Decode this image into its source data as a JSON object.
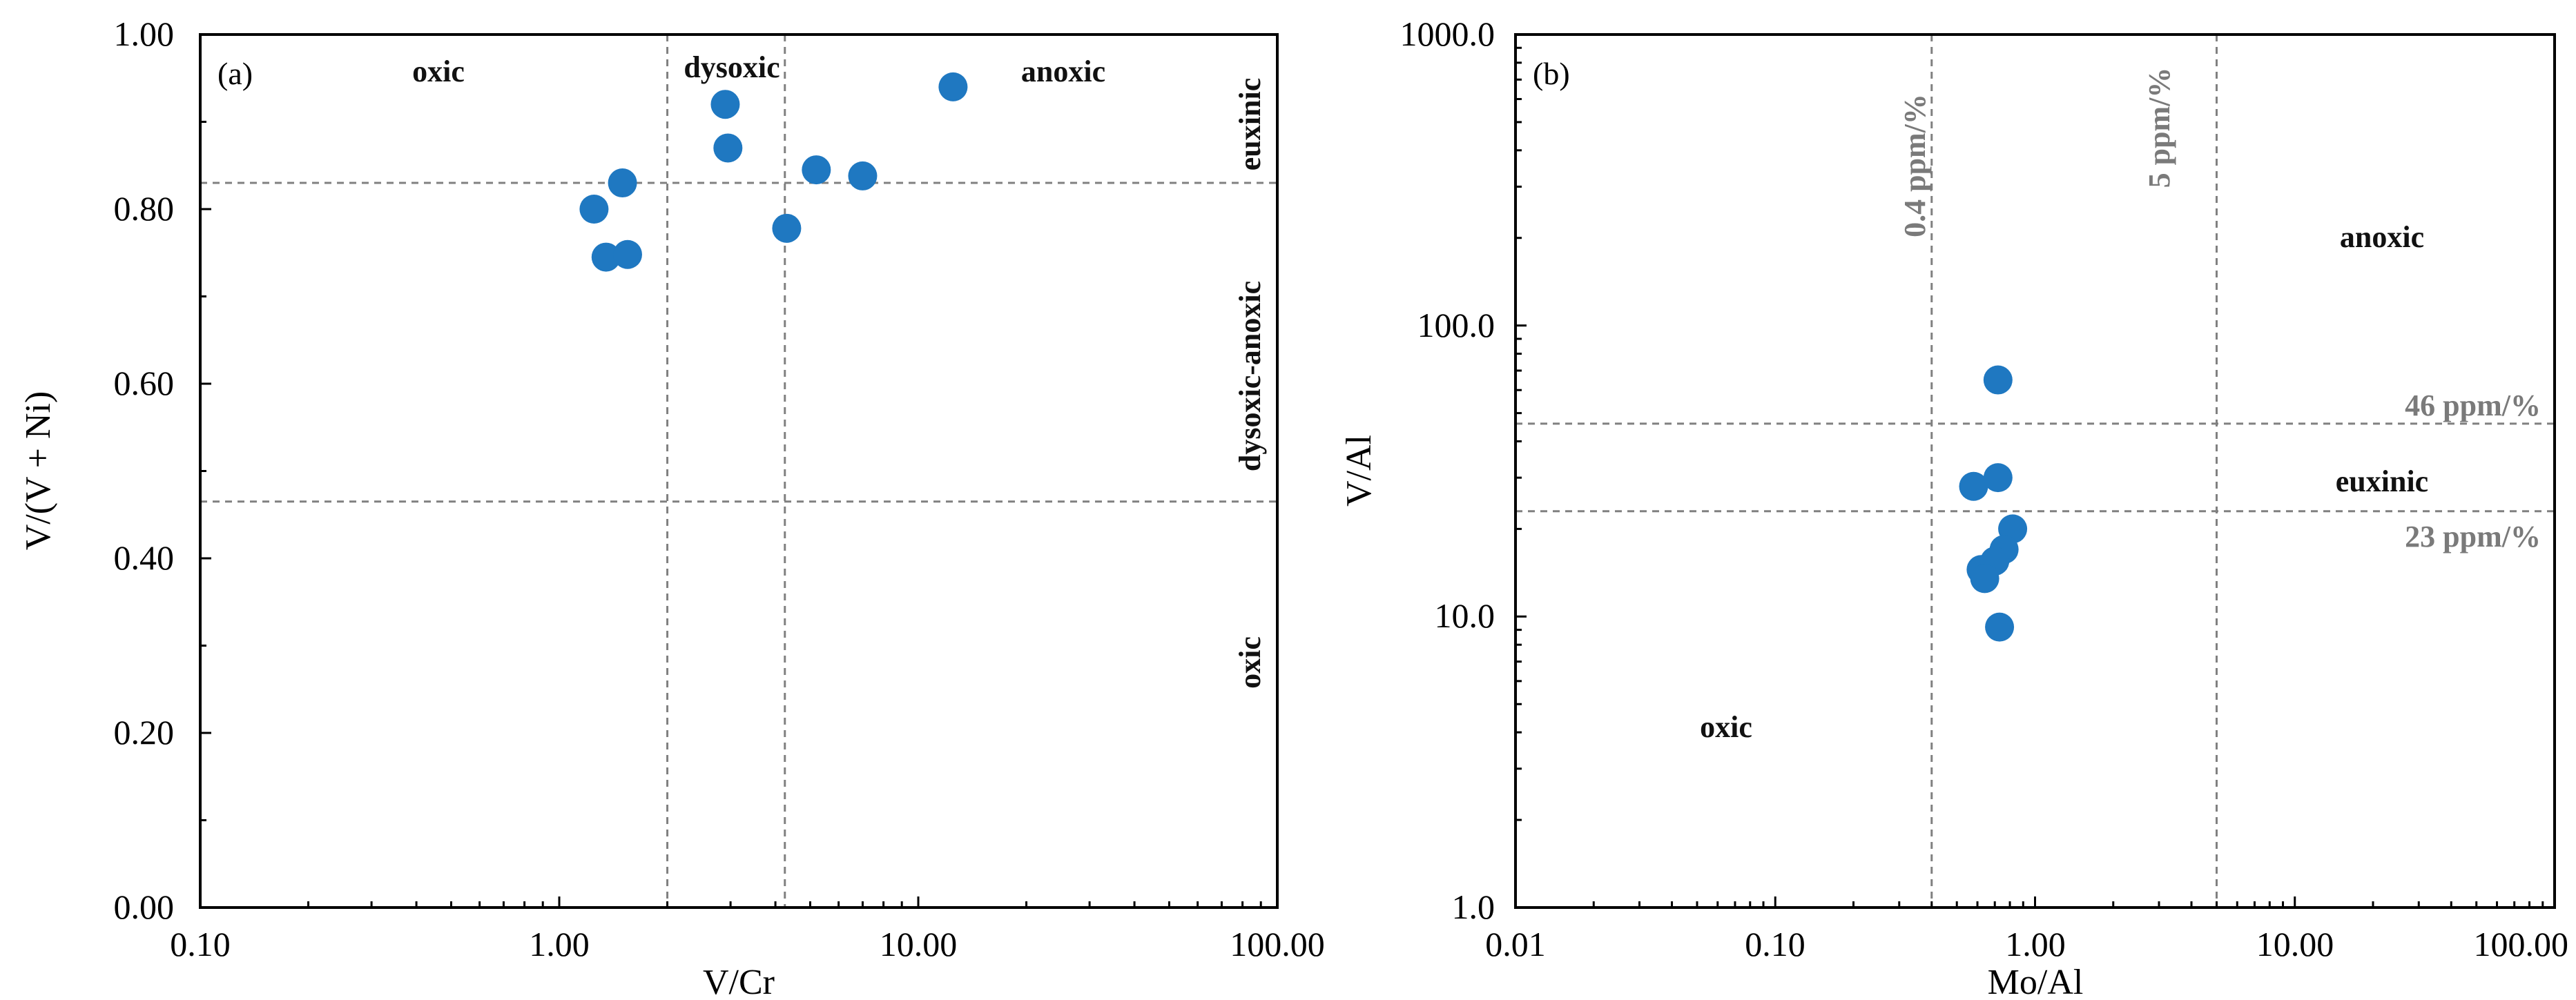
{
  "chart_data": [
    {
      "type": "scatter",
      "panel_label": "(a)",
      "xlabel": "V/Cr",
      "ylabel": "V/(V + Ni)",
      "x_scale": "log",
      "y_scale": "linear",
      "xlim": [
        0.1,
        100
      ],
      "ylim": [
        0,
        1
      ],
      "x_tick_labels": [
        "0.10",
        "1.00",
        "10.00",
        "100.00"
      ],
      "y_tick_labels": [
        "0.00",
        "0.20",
        "0.40",
        "0.60",
        "0.80",
        "1.00"
      ],
      "point_color": "#1f78c1",
      "points": [
        {
          "x": 1.25,
          "y": 0.8
        },
        {
          "x": 1.35,
          "y": 0.745
        },
        {
          "x": 1.5,
          "y": 0.83
        },
        {
          "x": 1.55,
          "y": 0.748
        },
        {
          "x": 2.9,
          "y": 0.92
        },
        {
          "x": 2.95,
          "y": 0.87
        },
        {
          "x": 4.3,
          "y": 0.778
        },
        {
          "x": 5.2,
          "y": 0.845
        },
        {
          "x": 7.0,
          "y": 0.838
        },
        {
          "x": 12.5,
          "y": 0.94
        }
      ],
      "threshold_lines": {
        "vertical": [
          2.0,
          4.25
        ],
        "horizontal": [
          0.83,
          0.465
        ]
      },
      "region_labels": {
        "top": [
          "oxic",
          "dysoxic",
          "anoxic"
        ],
        "right": [
          "euxinic",
          "dysoxic-anoxic",
          "oxic"
        ]
      }
    },
    {
      "type": "scatter",
      "panel_label": "(b)",
      "xlabel": "Mo/Al",
      "ylabel": "V/Al",
      "x_scale": "log",
      "y_scale": "log",
      "xlim": [
        0.01,
        100
      ],
      "ylim": [
        1,
        1000
      ],
      "x_tick_labels": [
        "0.01",
        "0.10",
        "1.00",
        "10.00",
        "100.00"
      ],
      "y_tick_labels": [
        "1.0",
        "10.0",
        "100.0",
        "1000.0"
      ],
      "point_color": "#1f78c1",
      "points": [
        {
          "x": 0.72,
          "y": 65
        },
        {
          "x": 0.58,
          "y": 28
        },
        {
          "x": 0.72,
          "y": 30
        },
        {
          "x": 0.82,
          "y": 20
        },
        {
          "x": 0.76,
          "y": 17
        },
        {
          "x": 0.7,
          "y": 15.5
        },
        {
          "x": 0.62,
          "y": 14.5
        },
        {
          "x": 0.64,
          "y": 13.5
        },
        {
          "x": 0.73,
          "y": 9.2
        }
      ],
      "threshold_lines": {
        "vertical": [
          0.4,
          5.0
        ],
        "horizontal": [
          46,
          23
        ]
      },
      "threshold_labels": {
        "vertical": [
          "0.4 ppm/%",
          "5 ppm/%"
        ],
        "horizontal": [
          "46 ppm/%",
          "23 ppm/%"
        ]
      },
      "region_labels": [
        "anoxic",
        "euxinic",
        "oxic"
      ]
    }
  ]
}
